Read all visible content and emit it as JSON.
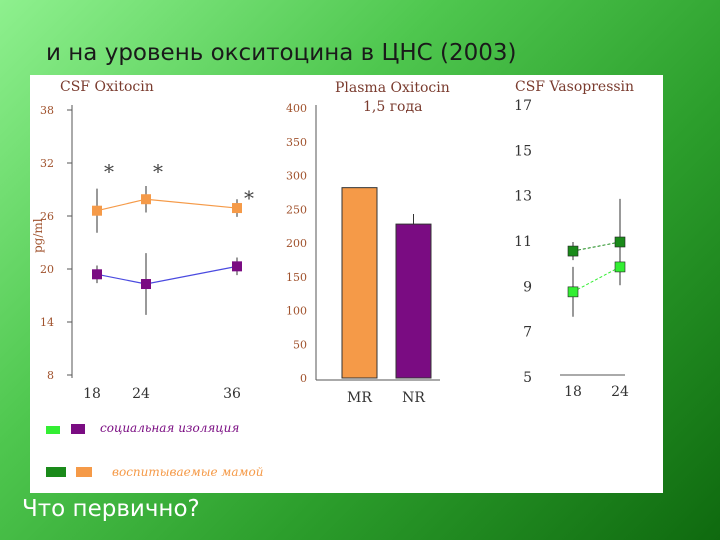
{
  "slide": {
    "title": "и на уровень окситоцина в ЦНС (2003)",
    "question": "Что первично?"
  },
  "colors": {
    "social_isolation_light": "#33ee33",
    "social_isolation_dark": "#7a0c82",
    "maternal_dark": "#1a8a1a",
    "maternal_light": "#f59a48",
    "axis_label": "#a0522d",
    "title_text": "#7a3b2e"
  },
  "legend": {
    "social_isolation": "социальная изоляция",
    "maternal": "воспитываемые мамой"
  },
  "chart_data": [
    {
      "type": "line",
      "title": "CSF Oxitocin",
      "ylabel": "pg/ml",
      "xlabel": "",
      "ylim": [
        8,
        38
      ],
      "yticks": [
        8,
        14,
        20,
        26,
        32,
        38
      ],
      "x": [
        18,
        24,
        36
      ],
      "series": [
        {
          "values": [
            26.6,
            27.9,
            26.9
          ],
          "err": [
            2.5,
            1.5,
            1.0
          ],
          "color": "#f59a48",
          "line": "#f59a48"
        },
        {
          "values": [
            19.4,
            18.3,
            20.3
          ],
          "err": [
            1.0,
            3.5,
            1.0
          ],
          "color": "#7a0c82",
          "line": "#4a4ae0"
        }
      ],
      "annotations": [
        {
          "text": "*",
          "x": 18,
          "y": 31.6
        },
        {
          "text": "*",
          "x": 24,
          "y": 31.6
        },
        {
          "text": "*",
          "x": 36,
          "y": 28.6
        }
      ]
    },
    {
      "type": "bar",
      "title": "Plasma Oxitocin",
      "subtitle": "1,5 года",
      "ylim": [
        0,
        400
      ],
      "yticks": [
        0,
        50,
        100,
        150,
        200,
        250,
        300,
        350,
        400
      ],
      "categories": [
        "MR",
        "NR"
      ],
      "values": [
        282,
        228
      ],
      "err": [
        0,
        15
      ],
      "colors": [
        "#f59a48",
        "#7a0c82"
      ]
    },
    {
      "type": "line",
      "title": "CSF Vasopressin",
      "ylim": [
        5,
        17
      ],
      "yticks": [
        5,
        7,
        9,
        11,
        13,
        15,
        17
      ],
      "x": [
        18,
        24
      ],
      "series": [
        {
          "values": [
            10.6,
            11.0
          ],
          "err": [
            0.4,
            1.9
          ],
          "color": "#1a8a1a",
          "line": "#1a8a1a"
        },
        {
          "values": [
            8.8,
            9.9
          ],
          "err": [
            1.1,
            0.8
          ],
          "color": "#33ee33",
          "line": "#33ee33"
        }
      ]
    }
  ]
}
